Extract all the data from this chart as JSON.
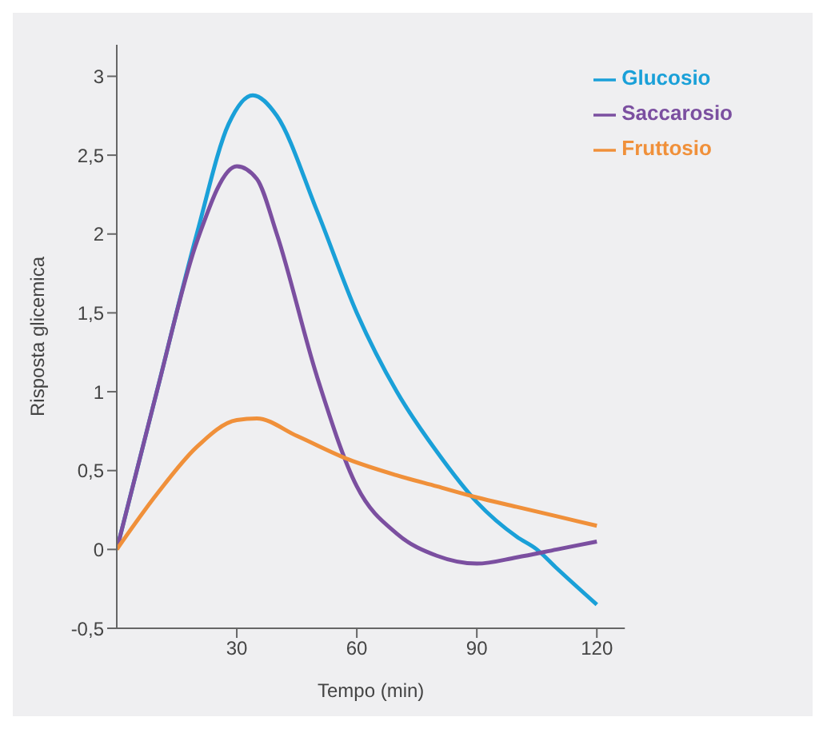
{
  "chart_data": {
    "type": "line",
    "xlabel": "Tempo (min)",
    "ylabel": "Risposta glicemica",
    "xlim": [
      0,
      127
    ],
    "xticks": [
      30,
      60,
      90,
      120
    ],
    "ylim": [
      -0.5,
      3.2
    ],
    "yticks": [
      {
        "value": -0.5,
        "label": "-0,5"
      },
      0,
      {
        "value": 0.5,
        "label": "0,5"
      },
      1,
      {
        "value": 1.5,
        "label": "1,5"
      },
      2,
      {
        "value": 2.5,
        "label": "2,5"
      },
      3
    ],
    "grid": false,
    "legend": "top right",
    "marker": "none",
    "line_style": "solid",
    "series": [
      {
        "name": "Glucosio",
        "color": "#1aa0d8",
        "x": [
          0,
          10,
          20,
          28,
          34,
          40,
          50,
          60,
          70,
          80,
          90,
          100,
          105,
          110,
          120
        ],
        "values": [
          0,
          1.0,
          2.0,
          2.7,
          2.88,
          2.75,
          2.15,
          1.5,
          1.0,
          0.62,
          0.3,
          0.08,
          0,
          -0.12,
          -0.35
        ]
      },
      {
        "name": "Saccarosio",
        "color": "#7b4fa0",
        "x": [
          0,
          10,
          20,
          30,
          35,
          40,
          50,
          60,
          70,
          80,
          90,
          100,
          110,
          120
        ],
        "values": [
          0,
          1.0,
          1.95,
          2.43,
          2.35,
          2.0,
          1.1,
          0.4,
          0.1,
          -0.04,
          -0.09,
          -0.05,
          0,
          0.05
        ]
      },
      {
        "name": "Fruttosio",
        "color": "#f0903a",
        "x": [
          0,
          10,
          20,
          30,
          35,
          45,
          58,
          70,
          80,
          90,
          100,
          110,
          120
        ],
        "values": [
          0,
          0.35,
          0.65,
          0.82,
          0.83,
          0.72,
          0.57,
          0.47,
          0.4,
          0.33,
          0.27,
          0.21,
          0.15
        ]
      }
    ]
  }
}
